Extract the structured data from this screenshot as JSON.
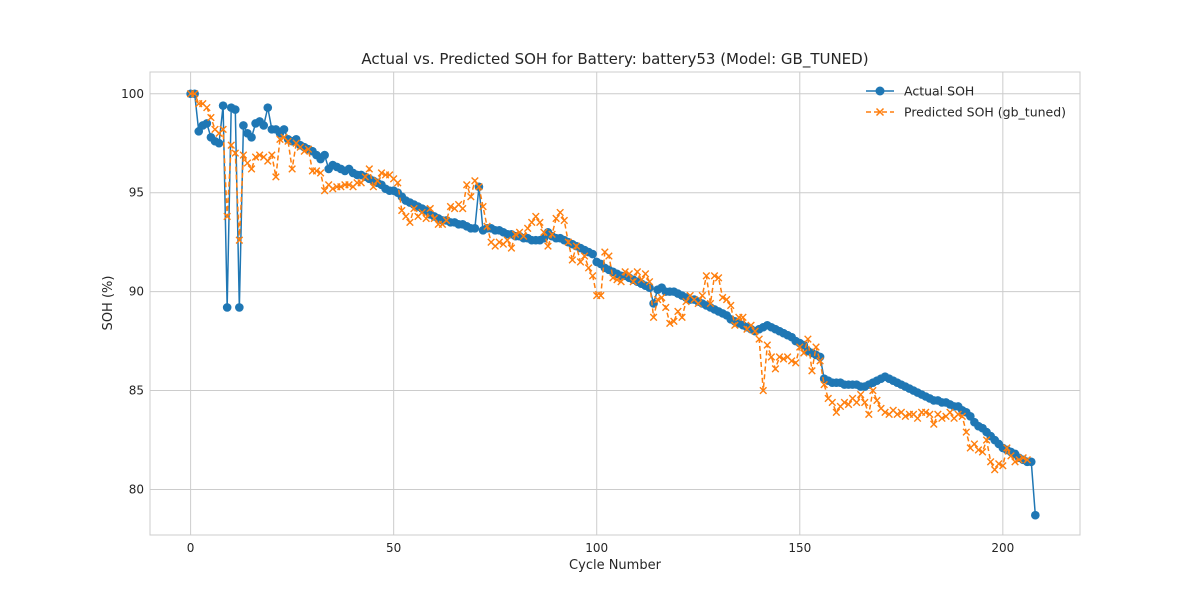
{
  "chart_data": {
    "type": "line",
    "title": "Actual vs. Predicted SOH for Battery: battery53 (Model: GB_TUNED)",
    "xlabel": "Cycle Number",
    "ylabel": "SOH (%)",
    "xlim": [
      -10,
      219
    ],
    "ylim": [
      77.7,
      101.1
    ],
    "xticks": [
      0,
      50,
      100,
      150,
      200
    ],
    "yticks": [
      80,
      85,
      90,
      95,
      100
    ],
    "grid": true,
    "legend_position": "top-right",
    "series": [
      {
        "name": "Actual SOH",
        "color": "#1f77b4",
        "style": "solid",
        "marker": "circle",
        "values": [
          100.0,
          100.0,
          98.1,
          98.4,
          98.5,
          97.8,
          97.6,
          97.5,
          99.4,
          89.2,
          99.3,
          99.2,
          89.2,
          98.4,
          98.0,
          97.8,
          98.5,
          98.6,
          98.4,
          99.3,
          98.2,
          98.2,
          98.0,
          98.2,
          97.7,
          97.6,
          97.7,
          97.4,
          97.3,
          97.2,
          97.1,
          96.9,
          96.7,
          96.9,
          96.2,
          96.4,
          96.3,
          96.2,
          96.1,
          96.2,
          96.0,
          95.9,
          95.9,
          95.8,
          95.7,
          95.6,
          95.5,
          95.4,
          95.2,
          95.1,
          95.1,
          95.0,
          94.8,
          94.6,
          94.5,
          94.4,
          94.3,
          94.2,
          94.1,
          93.9,
          93.8,
          93.7,
          93.6,
          93.6,
          93.5,
          93.5,
          93.4,
          93.4,
          93.3,
          93.2,
          93.2,
          95.3,
          93.1,
          93.2,
          93.2,
          93.1,
          93.1,
          93.0,
          92.9,
          92.9,
          92.8,
          92.8,
          92.7,
          92.7,
          92.6,
          92.6,
          92.6,
          92.7,
          93.0,
          92.8,
          92.7,
          92.7,
          92.6,
          92.5,
          92.4,
          92.3,
          92.2,
          92.1,
          92.0,
          91.9,
          91.5,
          91.4,
          91.2,
          91.1,
          91.0,
          90.9,
          90.8,
          90.8,
          90.7,
          90.6,
          90.5,
          90.4,
          90.3,
          90.2,
          89.4,
          90.1,
          90.2,
          90.0,
          90.0,
          90.0,
          89.9,
          89.8,
          89.7,
          89.6,
          89.6,
          89.5,
          89.4,
          89.3,
          89.2,
          89.1,
          89.0,
          88.9,
          88.8,
          88.6,
          88.5,
          88.4,
          88.3,
          88.2,
          88.1,
          88.0,
          88.1,
          88.2,
          88.3,
          88.2,
          88.1,
          88.0,
          87.9,
          87.8,
          87.7,
          87.5,
          87.4,
          87.3,
          87.0,
          86.9,
          86.8,
          86.7,
          85.6,
          85.5,
          85.4,
          85.4,
          85.4,
          85.3,
          85.3,
          85.3,
          85.3,
          85.2,
          85.2,
          85.3,
          85.4,
          85.5,
          85.6,
          85.7,
          85.6,
          85.5,
          85.4,
          85.3,
          85.2,
          85.1,
          85.0,
          84.9,
          84.8,
          84.7,
          84.6,
          84.5,
          84.5,
          84.4,
          84.4,
          84.3,
          84.2,
          84.2,
          84.0,
          83.9,
          83.7,
          83.4,
          83.2,
          83.1,
          82.9,
          82.7,
          82.5,
          82.3,
          82.1,
          82.0,
          81.9,
          81.8,
          81.6,
          81.5,
          81.4,
          81.4,
          78.7
        ]
      },
      {
        "name": "Predicted SOH (gb_tuned)",
        "color": "#ff7f0e",
        "style": "dashed",
        "marker": "x",
        "values": [
          100.0,
          100.0,
          99.5,
          99.5,
          99.3,
          98.8,
          98.2,
          98.0,
          98.2,
          93.8,
          97.4,
          97.0,
          92.6,
          96.9,
          96.5,
          96.2,
          96.8,
          96.9,
          96.8,
          96.6,
          96.9,
          95.8,
          97.7,
          97.8,
          97.6,
          96.2,
          97.5,
          97.3,
          97.1,
          97.2,
          96.1,
          96.1,
          96.0,
          95.1,
          95.4,
          95.2,
          95.3,
          95.3,
          95.4,
          95.4,
          95.3,
          95.5,
          95.5,
          95.8,
          96.2,
          95.3,
          95.6,
          96.0,
          95.9,
          95.9,
          95.7,
          95.5,
          94.1,
          93.8,
          93.5,
          94.2,
          93.8,
          94.0,
          93.7,
          94.2,
          93.7,
          93.4,
          93.4,
          93.6,
          94.3,
          94.2,
          94.4,
          94.2,
          95.4,
          94.8,
          95.6,
          95.3,
          94.3,
          93.3,
          92.5,
          92.3,
          92.5,
          92.4,
          92.6,
          92.2,
          92.9,
          93.0,
          92.8,
          93.2,
          93.5,
          93.8,
          93.5,
          93.0,
          92.3,
          92.9,
          93.7,
          94.0,
          93.6,
          92.5,
          91.6,
          92.3,
          91.5,
          91.8,
          91.2,
          90.8,
          89.8,
          89.8,
          92.0,
          91.8,
          90.7,
          90.6,
          90.5,
          91.0,
          90.9,
          90.5,
          91.0,
          90.6,
          90.9,
          90.5,
          88.7,
          89.6,
          89.7,
          89.2,
          88.4,
          88.5,
          89.0,
          88.7,
          89.5,
          89.8,
          89.6,
          89.4,
          89.8,
          90.8,
          89.4,
          90.8,
          90.7,
          89.7,
          89.6,
          89.3,
          88.3,
          88.7,
          88.7,
          88.1,
          88.3,
          88.0,
          87.6,
          85.0,
          87.3,
          86.7,
          86.1,
          86.7,
          86.6,
          86.7,
          86.5,
          86.4,
          87.2,
          86.9,
          87.6,
          86.0,
          87.2,
          86.5,
          85.3,
          84.6,
          84.4,
          83.9,
          84.2,
          84.4,
          84.3,
          84.6,
          84.4,
          84.8,
          84.4,
          83.8,
          85.0,
          84.5,
          84.1,
          83.9,
          83.8,
          84.0,
          83.8,
          83.9,
          83.7,
          83.8,
          83.8,
          83.6,
          83.9,
          83.9,
          83.8,
          83.3,
          83.8,
          83.6,
          83.7,
          83.9,
          83.6,
          83.8,
          83.7,
          82.9,
          82.1,
          82.3,
          82.0,
          81.9,
          82.5,
          81.4,
          81.0,
          81.3,
          81.2,
          82.1,
          81.7,
          81.4,
          81.5,
          81.6,
          81.5
        ]
      }
    ]
  }
}
